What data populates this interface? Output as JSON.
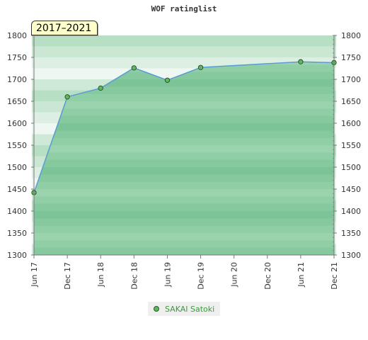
{
  "chart_data": {
    "type": "area",
    "title": "WOF ratinglist",
    "badge": "2017–2021",
    "x_tick_labels": [
      "Jun 17",
      "Dec 17",
      "Jun 18",
      "Dec 18",
      "Jun 19",
      "Dec 19",
      "Jun 20",
      "Dec 20",
      "Jun 21",
      "Dec 21"
    ],
    "y_ticks": [
      1300,
      1350,
      1400,
      1450,
      1500,
      1550,
      1600,
      1650,
      1700,
      1750,
      1800
    ],
    "ylim": [
      1300,
      1800
    ],
    "xlim": [
      0,
      9
    ],
    "grid": false,
    "legend_position": "bottom-center",
    "series": [
      {
        "name": "SAKAI Satoki",
        "color": "#5b9bd5",
        "points": [
          {
            "x": 0,
            "y": 1442
          },
          {
            "x": 1,
            "y": 1660
          },
          {
            "x": 2,
            "y": 1680
          },
          {
            "x": 3,
            "y": 1726
          },
          {
            "x": 4,
            "y": 1698
          },
          {
            "x": 5,
            "y": 1727
          },
          {
            "x": 8,
            "y": 1740
          },
          {
            "x": 9,
            "y": 1738
          }
        ]
      }
    ]
  }
}
